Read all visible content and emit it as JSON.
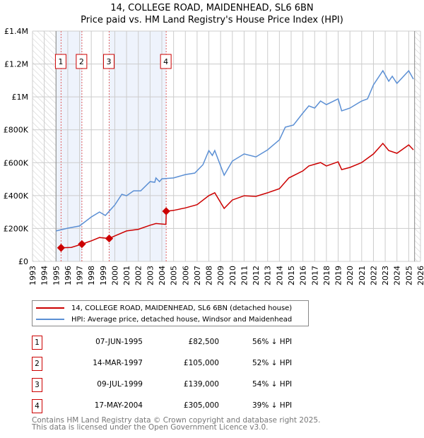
{
  "chart_data": {
    "type": "line",
    "title": "14, COLLEGE ROAD, MAIDENHEAD, SL6 6BN",
    "subtitle": "Price paid vs. HM Land Registry's House Price Index (HPI)",
    "xlim": [
      1993,
      2026
    ],
    "ylim": [
      0,
      1400000
    ],
    "x_ticks": [
      "1993",
      "1994",
      "1995",
      "1996",
      "1997",
      "1998",
      "1999",
      "2000",
      "2001",
      "2002",
      "2003",
      "2004",
      "2005",
      "2006",
      "2007",
      "2008",
      "2009",
      "2010",
      "2011",
      "2012",
      "2013",
      "2014",
      "2015",
      "2016",
      "2017",
      "2018",
      "2019",
      "2020",
      "2021",
      "2022",
      "2023",
      "2024",
      "2025",
      "2026"
    ],
    "y_ticks": [
      {
        "v": 0,
        "label": "£0"
      },
      {
        "v": 200000,
        "label": "£200K"
      },
      {
        "v": 400000,
        "label": "£400K"
      },
      {
        "v": 600000,
        "label": "£600K"
      },
      {
        "v": 800000,
        "label": "£800K"
      },
      {
        "v": 1000000,
        "label": "£1M"
      },
      {
        "v": 1200000,
        "label": "£1.2M"
      },
      {
        "v": 1400000,
        "label": "£1.4M"
      }
    ],
    "grid": true,
    "series": [
      {
        "name": "14, COLLEGE ROAD, MAIDENHEAD, SL6 6BN (detached house)",
        "color": "#cc0000",
        "x": [
          1995.43,
          1996.3,
          1997.2,
          1998,
          1998.7,
          1999.52,
          2000,
          2001,
          2002,
          2003,
          2003.5,
          2004.35,
          2004.38,
          2005,
          2006,
          2007,
          2008,
          2008.5,
          2009.3,
          2010,
          2011,
          2012,
          2013,
          2014,
          2014.8,
          2016,
          2016.5,
          2017.5,
          2018,
          2019,
          2019.3,
          2020,
          2021,
          2022,
          2022.8,
          2023.3,
          2024,
          2025,
          2025.4
        ],
        "y": [
          82500,
          85000,
          105000,
          125000,
          145000,
          139000,
          155000,
          185000,
          195000,
          220000,
          230000,
          225000,
          305000,
          310000,
          325000,
          345000,
          400000,
          417000,
          322000,
          373000,
          399000,
          395000,
          417000,
          442000,
          507000,
          550000,
          580000,
          601000,
          580000,
          605000,
          558000,
          571000,
          601000,
          653000,
          717000,
          674000,
          657000,
          708000,
          678000
        ]
      },
      {
        "name": "HPI: Average price, detached house, Windsor and Maidenhead",
        "color": "#5b8fd4",
        "x": [
          1995,
          1996,
          1997,
          1998,
          1998.7,
          1999.2,
          2000,
          2000.6,
          2001,
          2001.6,
          2002.2,
          2003,
          2003.4,
          2003.5,
          2003.8,
          2004,
          2005,
          2006,
          2006.8,
          2007.5,
          2008,
          2008.3,
          2008.5,
          2009.3,
          2010,
          2011,
          2012,
          2013,
          2014,
          2014.5,
          2015.2,
          2016,
          2016.5,
          2017,
          2017.5,
          2018,
          2019,
          2019.3,
          2020,
          2021,
          2021.5,
          2022,
          2022.8,
          2023.3,
          2023.6,
          2024,
          2025,
          2025.4
        ],
        "y": [
          185000,
          202000,
          215000,
          270000,
          300000,
          279000,
          343000,
          408000,
          399000,
          429000,
          429000,
          485000,
          481000,
          507000,
          485000,
          502000,
          507000,
          528000,
          537000,
          588000,
          674000,
          644000,
          674000,
          524000,
          610000,
          653000,
          635000,
          678000,
          739000,
          816000,
          829000,
          902000,
          945000,
          932000,
          975000,
          953000,
          988000,
          915000,
          932000,
          975000,
          988000,
          1073000,
          1159000,
          1095000,
          1125000,
          1082000,
          1159000,
          1108000
        ]
      }
    ],
    "sales": [
      {
        "id": "1",
        "x": 1995.43,
        "price_value": 82500,
        "date": "07-JUN-1995",
        "price": "£82,500",
        "hpi": "56% ↓ HPI"
      },
      {
        "id": "2",
        "x": 1997.2,
        "price_value": 105000,
        "date": "14-MAR-1997",
        "price": "£105,000",
        "hpi": "52% ↓ HPI"
      },
      {
        "id": "3",
        "x": 1999.52,
        "price_value": 139000,
        "date": "09-JUL-1999",
        "price": "£139,000",
        "hpi": "54% ↓ HPI"
      },
      {
        "id": "4",
        "x": 2004.37,
        "price_value": 305000,
        "date": "17-MAY-2004",
        "price": "£305,000",
        "hpi": "39% ↓ HPI"
      }
    ],
    "legend_placement": "below"
  },
  "footer": {
    "line1": "Contains HM Land Registry data © Crown copyright and database right 2025.",
    "line2": "This data is licensed under the Open Government Licence v3.0."
  }
}
